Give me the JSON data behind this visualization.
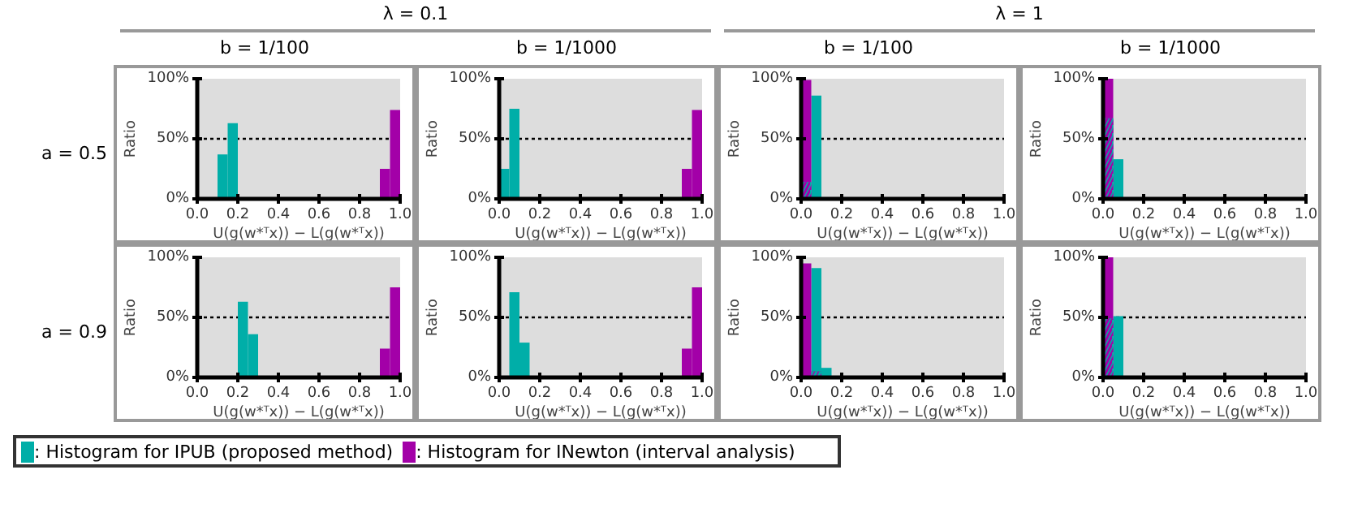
{
  "chart_data": [
    {
      "type": "histogram",
      "title": "b = 1/100",
      "annotations": [
        "λ = 0.1",
        "a = 0.5"
      ],
      "xlabel": "U(g(w*ᵀx)) − L(g(w*ᵀx))",
      "ylabel": "Ratio",
      "bins": [
        0,
        0.05,
        0.1,
        0.15,
        0.2,
        0.25,
        0.3,
        0.35,
        0.4,
        0.45,
        0.5,
        0.55,
        0.6,
        0.65,
        0.7,
        0.75,
        0.8,
        0.85,
        0.9,
        0.95,
        1
      ],
      "xlim": [
        0,
        1
      ],
      "ylim": [
        0,
        100
      ],
      "xticks": [
        {
          "value": 0,
          "label": "0.0"
        },
        {
          "value": 0.2,
          "label": "0.2"
        },
        {
          "value": 0.4,
          "label": "0.4"
        },
        {
          "value": 0.6,
          "label": "0.6"
        },
        {
          "value": 0.8,
          "label": "0.8"
        },
        {
          "value": 1,
          "label": "1.0"
        }
      ],
      "yticks": [
        {
          "value": 0,
          "label": "0%"
        },
        {
          "value": 50,
          "label": "50%"
        },
        {
          "value": 100,
          "label": "100%"
        }
      ],
      "grid": "y",
      "legend": "bottom",
      "series": [
        {
          "name": ": Histogram for IPUB (proposed method)",
          "color": "#00aea8",
          "values": [
            0,
            0,
            37,
            63,
            1,
            0,
            0,
            0,
            0,
            0,
            0,
            0,
            0,
            0,
            0,
            0,
            0,
            0,
            0,
            0
          ]
        },
        {
          "name": ": Histogram for INewton (interval analysis)",
          "color": "#a300a8",
          "values": [
            0,
            0,
            0,
            0,
            0,
            0,
            0,
            0,
            0,
            0,
            0,
            0,
            0,
            0,
            0,
            0,
            0,
            1,
            25,
            74
          ]
        }
      ]
    },
    {
      "type": "histogram",
      "title": "b = 1/1000",
      "xlabel": "U(g(w*ᵀx)) − L(g(w*ᵀx))",
      "ylabel": "Ratio",
      "bins": [
        0,
        0.05,
        0.1,
        0.15,
        0.2,
        0.25,
        0.3,
        0.35,
        0.4,
        0.45,
        0.5,
        0.55,
        0.6,
        0.65,
        0.7,
        0.75,
        0.8,
        0.85,
        0.9,
        0.95,
        1
      ],
      "xlim": [
        0,
        1
      ],
      "ylim": [
        0,
        100
      ],
      "xticks": [
        {
          "value": 0,
          "label": "0.0"
        },
        {
          "value": 0.2,
          "label": "0.2"
        },
        {
          "value": 0.4,
          "label": "0.4"
        },
        {
          "value": 0.6,
          "label": "0.6"
        },
        {
          "value": 0.8,
          "label": "0.8"
        },
        {
          "value": 1,
          "label": "1.0"
        }
      ],
      "yticks": [
        {
          "value": 0,
          "label": "0%"
        },
        {
          "value": 50,
          "label": "50%"
        },
        {
          "value": 100,
          "label": "100%"
        }
      ],
      "grid": "y",
      "series": [
        {
          "color": "#00aea8",
          "values": [
            25,
            75,
            0,
            0,
            0,
            0,
            0,
            0,
            0,
            0,
            0,
            0,
            0,
            0,
            0,
            0,
            0,
            0,
            0,
            0
          ]
        },
        {
          "color": "#a300a8",
          "values": [
            0,
            0,
            0,
            0,
            0,
            0,
            0,
            0,
            0,
            0,
            0,
            0,
            0,
            0,
            0,
            0,
            0,
            1,
            25,
            74
          ]
        }
      ]
    },
    {
      "type": "histogram",
      "title": "b = 1/100",
      "annotations": [
        "λ = 1"
      ],
      "xlabel": "U(g(w*ᵀx)) − L(g(w*ᵀx))",
      "ylabel": "Ratio",
      "bins": [
        0,
        0.05,
        0.1,
        0.15,
        0.2,
        0.25,
        0.3,
        0.35,
        0.4,
        0.45,
        0.5,
        0.55,
        0.6,
        0.65,
        0.7,
        0.75,
        0.8,
        0.85,
        0.9,
        0.95,
        1
      ],
      "xlim": [
        0,
        1
      ],
      "ylim": [
        0,
        100
      ],
      "xticks": [
        {
          "value": 0,
          "label": "0.0"
        },
        {
          "value": 0.2,
          "label": "0.2"
        },
        {
          "value": 0.4,
          "label": "0.4"
        },
        {
          "value": 0.6,
          "label": "0.6"
        },
        {
          "value": 0.8,
          "label": "0.8"
        },
        {
          "value": 1,
          "label": "1.0"
        }
      ],
      "yticks": [
        {
          "value": 0,
          "label": "0%"
        },
        {
          "value": 50,
          "label": "50%"
        },
        {
          "value": 100,
          "label": "100%"
        }
      ],
      "grid": "y",
      "series": [
        {
          "color": "#00aea8",
          "values": [
            14,
            86,
            0,
            0,
            0,
            0,
            0,
            0,
            0,
            0,
            0,
            0,
            0,
            0,
            0,
            0,
            0,
            0,
            0,
            0
          ]
        },
        {
          "color": "#a300a8",
          "values": [
            99,
            1,
            0,
            0,
            0,
            0,
            0,
            0,
            0,
            0,
            0,
            0,
            0,
            0,
            0,
            0,
            0,
            0,
            0,
            0
          ]
        }
      ]
    },
    {
      "type": "histogram",
      "title": "b = 1/1000",
      "xlabel": "U(g(w*ᵀx)) − L(g(w*ᵀx))",
      "ylabel": "Ratio",
      "bins": [
        0,
        0.05,
        0.1,
        0.15,
        0.2,
        0.25,
        0.3,
        0.35,
        0.4,
        0.45,
        0.5,
        0.55,
        0.6,
        0.65,
        0.7,
        0.75,
        0.8,
        0.85,
        0.9,
        0.95,
        1
      ],
      "xlim": [
        0,
        1
      ],
      "ylim": [
        0,
        100
      ],
      "xticks": [
        {
          "value": 0,
          "label": "0.0"
        },
        {
          "value": 0.2,
          "label": "0.2"
        },
        {
          "value": 0.4,
          "label": "0.4"
        },
        {
          "value": 0.6,
          "label": "0.6"
        },
        {
          "value": 0.8,
          "label": "0.8"
        },
        {
          "value": 1,
          "label": "1.0"
        }
      ],
      "yticks": [
        {
          "value": 0,
          "label": "0%"
        },
        {
          "value": 50,
          "label": "50%"
        },
        {
          "value": 100,
          "label": "100%"
        }
      ],
      "grid": "y",
      "series": [
        {
          "color": "#00aea8",
          "values": [
            67,
            33,
            0,
            0,
            0,
            0,
            0,
            0,
            0,
            0,
            0,
            0,
            0,
            0,
            0,
            0,
            0,
            0,
            0,
            0
          ]
        },
        {
          "color": "#a300a8",
          "values": [
            100,
            0,
            0,
            0,
            0,
            0,
            0,
            0,
            0,
            0,
            0,
            0,
            0,
            0,
            0,
            0,
            0,
            0,
            0,
            0
          ]
        }
      ]
    },
    {
      "type": "histogram",
      "annotations": [
        "a = 0.9"
      ],
      "xlabel": "U(g(w*ᵀx)) − L(g(w*ᵀx))",
      "ylabel": "Ratio",
      "bins": [
        0,
        0.05,
        0.1,
        0.15,
        0.2,
        0.25,
        0.3,
        0.35,
        0.4,
        0.45,
        0.5,
        0.55,
        0.6,
        0.65,
        0.7,
        0.75,
        0.8,
        0.85,
        0.9,
        0.95,
        1
      ],
      "xlim": [
        0,
        1
      ],
      "ylim": [
        0,
        100
      ],
      "xticks": [
        {
          "value": 0,
          "label": "0.0"
        },
        {
          "value": 0.2,
          "label": "0.2"
        },
        {
          "value": 0.4,
          "label": "0.4"
        },
        {
          "value": 0.6,
          "label": "0.6"
        },
        {
          "value": 0.8,
          "label": "0.8"
        },
        {
          "value": 1,
          "label": "1.0"
        }
      ],
      "yticks": [
        {
          "value": 0,
          "label": "0%"
        },
        {
          "value": 50,
          "label": "50%"
        },
        {
          "value": 100,
          "label": "100%"
        }
      ],
      "grid": "y",
      "series": [
        {
          "color": "#00aea8",
          "values": [
            0,
            0,
            0,
            0,
            63,
            36,
            1,
            0,
            0,
            0,
            0,
            0,
            0,
            0,
            0,
            0,
            0,
            0,
            0,
            0
          ]
        },
        {
          "color": "#a300a8",
          "values": [
            0,
            0,
            0,
            0,
            0,
            0,
            0,
            0,
            0,
            0,
            0,
            0,
            0,
            0,
            0,
            0,
            0,
            1,
            24,
            75
          ]
        }
      ]
    },
    {
      "type": "histogram",
      "xlabel": "U(g(w*ᵀx)) − L(g(w*ᵀx))",
      "ylabel": "Ratio",
      "bins": [
        0,
        0.05,
        0.1,
        0.15,
        0.2,
        0.25,
        0.3,
        0.35,
        0.4,
        0.45,
        0.5,
        0.55,
        0.6,
        0.65,
        0.7,
        0.75,
        0.8,
        0.85,
        0.9,
        0.95,
        1
      ],
      "xlim": [
        0,
        1
      ],
      "ylim": [
        0,
        100
      ],
      "xticks": [
        {
          "value": 0,
          "label": "0.0"
        },
        {
          "value": 0.2,
          "label": "0.2"
        },
        {
          "value": 0.4,
          "label": "0.4"
        },
        {
          "value": 0.6,
          "label": "0.6"
        },
        {
          "value": 0.8,
          "label": "0.8"
        },
        {
          "value": 1,
          "label": "1.0"
        }
      ],
      "yticks": [
        {
          "value": 0,
          "label": "0%"
        },
        {
          "value": 50,
          "label": "50%"
        },
        {
          "value": 100,
          "label": "100%"
        }
      ],
      "grid": "y",
      "series": [
        {
          "color": "#00aea8",
          "values": [
            0,
            71,
            29,
            0,
            0,
            0,
            0,
            0,
            0,
            0,
            0,
            0,
            0,
            0,
            0,
            0,
            0,
            0,
            0,
            0
          ]
        },
        {
          "color": "#a300a8",
          "values": [
            0,
            0,
            0,
            0,
            0,
            0,
            0,
            0,
            0,
            0,
            0,
            0,
            0,
            0,
            0,
            0,
            0,
            1,
            24,
            75
          ]
        }
      ]
    },
    {
      "type": "histogram",
      "xlabel": "U(g(w*ᵀx)) − L(g(w*ᵀx))",
      "ylabel": "Ratio",
      "bins": [
        0,
        0.05,
        0.1,
        0.15,
        0.2,
        0.25,
        0.3,
        0.35,
        0.4,
        0.45,
        0.5,
        0.55,
        0.6,
        0.65,
        0.7,
        0.75,
        0.8,
        0.85,
        0.9,
        0.95,
        1
      ],
      "xlim": [
        0,
        1
      ],
      "ylim": [
        0,
        100
      ],
      "xticks": [
        {
          "value": 0,
          "label": "0.0"
        },
        {
          "value": 0.2,
          "label": "0.2"
        },
        {
          "value": 0.4,
          "label": "0.4"
        },
        {
          "value": 0.6,
          "label": "0.6"
        },
        {
          "value": 0.8,
          "label": "0.8"
        },
        {
          "value": 1,
          "label": "1.0"
        }
      ],
      "yticks": [
        {
          "value": 0,
          "label": "0%"
        },
        {
          "value": 50,
          "label": "50%"
        },
        {
          "value": 100,
          "label": "100%"
        }
      ],
      "grid": "y",
      "series": [
        {
          "color": "#00aea8",
          "values": [
            0,
            91,
            8,
            0,
            0,
            0,
            0,
            0,
            0,
            0,
            0,
            0,
            0,
            0,
            0,
            0,
            0,
            0,
            0,
            0
          ]
        },
        {
          "color": "#a300a8",
          "values": [
            95,
            5,
            0,
            0,
            0,
            0,
            0,
            0,
            0,
            0,
            0,
            0,
            0,
            0,
            0,
            0,
            0,
            0,
            0,
            0
          ]
        }
      ]
    },
    {
      "type": "histogram",
      "xlabel": "U(g(w*ᵀx)) − L(g(w*ᵀx))",
      "ylabel": "Ratio",
      "bins": [
        0,
        0.05,
        0.1,
        0.15,
        0.2,
        0.25,
        0.3,
        0.35,
        0.4,
        0.45,
        0.5,
        0.55,
        0.6,
        0.65,
        0.7,
        0.75,
        0.8,
        0.85,
        0.9,
        0.95,
        1
      ],
      "xlim": [
        0,
        1
      ],
      "ylim": [
        0,
        100
      ],
      "xticks": [
        {
          "value": 0,
          "label": "0.0"
        },
        {
          "value": 0.2,
          "label": "0.2"
        },
        {
          "value": 0.4,
          "label": "0.4"
        },
        {
          "value": 0.6,
          "label": "0.6"
        },
        {
          "value": 0.8,
          "label": "0.8"
        },
        {
          "value": 1,
          "label": "1.0"
        }
      ],
      "yticks": [
        {
          "value": 0,
          "label": "0%"
        },
        {
          "value": 50,
          "label": "50%"
        },
        {
          "value": 100,
          "label": "100%"
        }
      ],
      "grid": "y",
      "series": [
        {
          "color": "#00aea8",
          "values": [
            49,
            51,
            0,
            0,
            0,
            0,
            0,
            0,
            0,
            0,
            0,
            0,
            0,
            0,
            0,
            0,
            0,
            0,
            0,
            0
          ]
        },
        {
          "color": "#a300a8",
          "values": [
            100,
            0,
            0,
            0,
            0,
            0,
            0,
            0,
            0,
            0,
            0,
            0,
            0,
            0,
            0,
            0,
            0,
            0,
            0,
            0
          ]
        }
      ]
    }
  ]
}
